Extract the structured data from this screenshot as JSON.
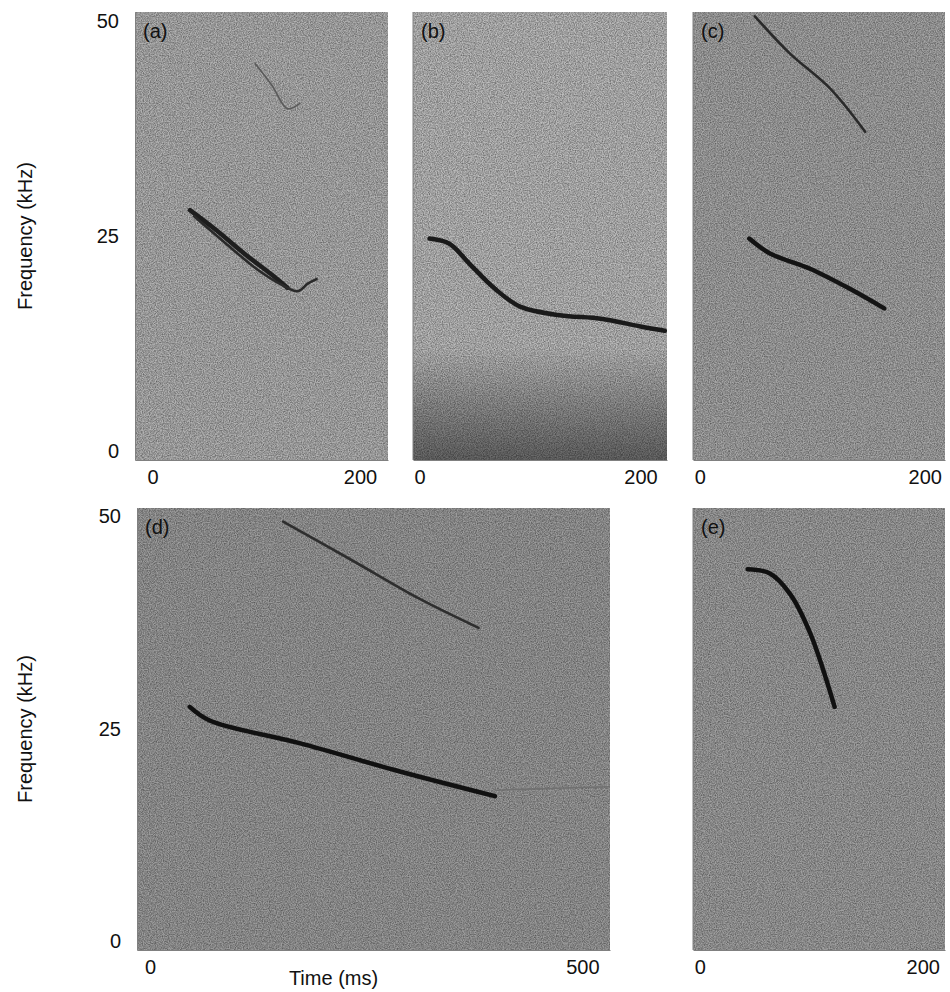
{
  "chart_data": [
    {
      "type": "line",
      "title": "(a)",
      "y_label": "Frequency (kHz)",
      "xlim": [
        -17,
        227
      ],
      "ylim": [
        -1,
        51
      ],
      "xticks": [
        0,
        200
      ],
      "yticks": [
        0,
        25,
        50
      ],
      "series": [
        {
          "color": "#1e1e1e",
          "line_style": "thick",
          "x": [
            36,
            60,
            90,
            115,
            130
          ],
          "values": [
            28.0,
            25.8,
            22.8,
            20.5,
            19.0
          ]
        },
        {
          "color": "#2a2a2a",
          "line_style": "medium",
          "x": [
            40,
            70,
            100,
            125,
            140,
            150,
            158
          ],
          "values": [
            27.3,
            24.2,
            21.2,
            19.3,
            18.6,
            19.5,
            20.0
          ]
        },
        {
          "color": "#5a5a5a",
          "line_style": "thin",
          "x": [
            99,
            115,
            130,
            142
          ],
          "values": [
            45.0,
            42.5,
            39.8,
            40.4
          ]
        }
      ]
    },
    {
      "type": "line",
      "title": "(b)",
      "tick_labels": "x",
      "xlim": [
        -6,
        224
      ],
      "ylim": [
        -1,
        51
      ],
      "xticks": [
        0,
        200
      ],
      "series": [
        {
          "color": "#1a1a1a",
          "line_style": "thick",
          "x": [
            9,
            27,
            45,
            68,
            91,
            127,
            164,
            200,
            222
          ],
          "values": [
            24.7,
            24.1,
            21.8,
            18.9,
            16.8,
            15.8,
            15.4,
            14.5,
            14.0
          ]
        }
      ]
    },
    {
      "type": "line",
      "title": "(c)",
      "tick_labels": "x",
      "xlim": [
        -6,
        218
      ],
      "ylim": [
        -1,
        51
      ],
      "xticks": [
        0,
        200
      ],
      "series": [
        {
          "color": "#2a2a2a",
          "line_style": "medium",
          "x": [
            49,
            80,
            116,
            147
          ],
          "values": [
            50.5,
            46.2,
            42.1,
            37.1
          ]
        },
        {
          "color": "#141414",
          "line_style": "thick",
          "x": [
            44,
            62,
            98,
            133,
            164
          ],
          "values": [
            24.7,
            23.0,
            21.2,
            18.9,
            16.6
          ]
        }
      ]
    },
    {
      "type": "line",
      "title": "(d)",
      "y_label": "Frequency (kHz)",
      "x_label": "Time (ms)",
      "xlim": [
        -15,
        532
      ],
      "ylim": [
        -1,
        51
      ],
      "xticks": [
        0,
        500
      ],
      "yticks": [
        0,
        25,
        50
      ],
      "series": [
        {
          "color": "#2e2e2e",
          "line_style": "medium",
          "x": [
            154,
            231,
            312,
            380
          ],
          "values": [
            49.4,
            45.0,
            40.3,
            36.9
          ]
        },
        {
          "color": "#111111",
          "line_style": "thick",
          "x": [
            46,
            69,
            174,
            289,
            399
          ],
          "values": [
            27.6,
            26.0,
            23.3,
            20.0,
            17.1
          ]
        },
        {
          "color": "#707070",
          "line_style": "thin",
          "x": [
            400,
            460,
            532
          ],
          "values": [
            17.8,
            18.0,
            18.2
          ]
        }
      ]
    },
    {
      "type": "line",
      "title": "(e)",
      "tick_labels": "x",
      "xlim": [
        -6,
        220
      ],
      "ylim": [
        -1,
        51
      ],
      "xticks": [
        0,
        200
      ],
      "series": [
        {
          "color": "#111111",
          "line_style": "thick",
          "x": [
            43,
            63,
            81,
            99,
            121
          ],
          "values": [
            43.8,
            43.3,
            40.9,
            36.3,
            27.6
          ]
        }
      ]
    }
  ]
}
